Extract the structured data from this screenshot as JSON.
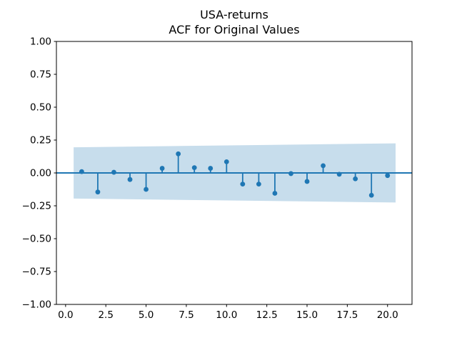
{
  "figure": {
    "background": "#ffffff"
  },
  "chart_data": {
    "type": "stem",
    "title_line1": "USA-returns",
    "title_line2": "ACF for Original Values",
    "xlabel": "",
    "ylabel": "",
    "x": [
      1,
      2,
      3,
      4,
      5,
      6,
      7,
      8,
      9,
      10,
      11,
      12,
      13,
      14,
      15,
      16,
      17,
      18,
      19,
      20
    ],
    "values": [
      0.01,
      -0.145,
      0.005,
      -0.05,
      -0.125,
      0.035,
      0.145,
      0.04,
      0.035,
      0.085,
      -0.085,
      -0.085,
      -0.155,
      -0.005,
      -0.065,
      0.055,
      -0.01,
      -0.045,
      -0.17,
      -0.02
    ],
    "zero_line_y": 0.0,
    "xlim": [
      -0.57,
      21.52
    ],
    "ylim": [
      -1.0,
      1.0
    ],
    "xticks": [
      0.0,
      2.5,
      5.0,
      7.5,
      10.0,
      12.5,
      15.0,
      17.5,
      20.0
    ],
    "xtick_labels": [
      "0.0",
      "2.5",
      "5.0",
      "7.5",
      "10.0",
      "12.5",
      "15.0",
      "17.5",
      "20.0"
    ],
    "yticks": [
      1.0,
      0.75,
      0.5,
      0.25,
      0.0,
      -0.25,
      -0.5,
      -0.75,
      -1.0
    ],
    "ytick_labels": [
      "1.00",
      "0.75",
      "0.50",
      "0.25",
      "0.00",
      "−0.25",
      "−0.50",
      "−0.75",
      "−1.00"
    ],
    "confidence_band": {
      "x_start": 0.5,
      "x_end": 20.5,
      "upper_start": 0.195,
      "upper_end": 0.225,
      "lower_start": -0.195,
      "lower_end": -0.225
    },
    "grid": "off",
    "legend": "none",
    "colors": {
      "line": "#1f77b4",
      "band_alpha": 0.25,
      "axis": "#000000",
      "text": "#000000"
    }
  }
}
